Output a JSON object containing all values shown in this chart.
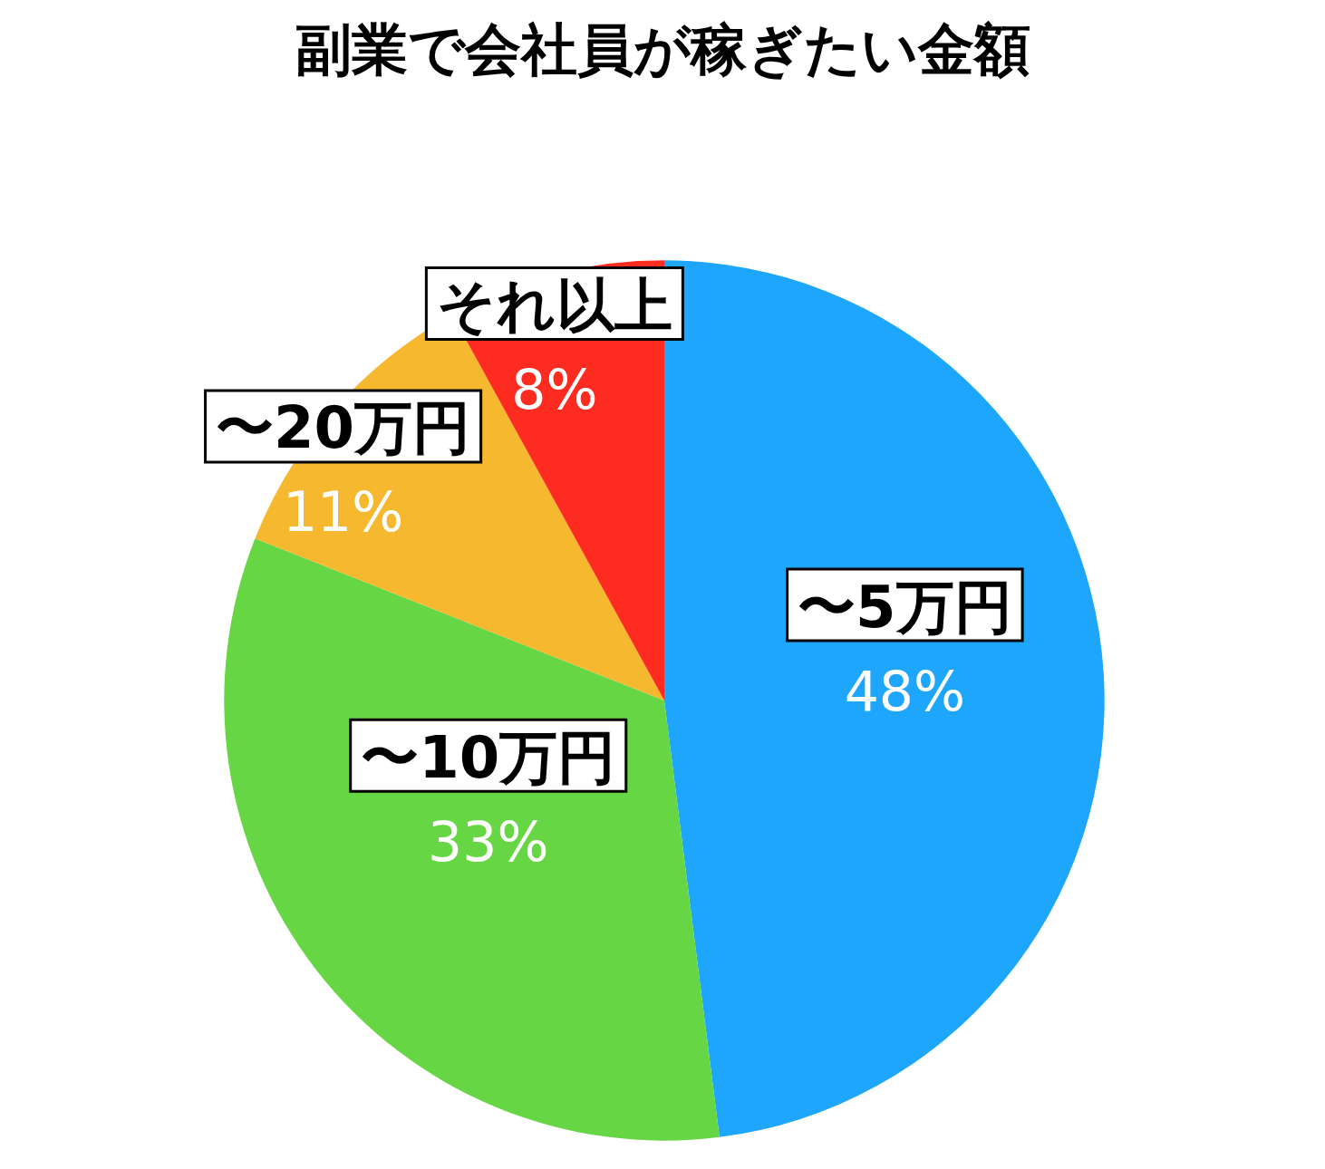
{
  "chart_data": {
    "type": "pie",
    "title": "副業で会社員が稼ぎたい金額",
    "categories": [
      "〜5万円",
      "〜10万円",
      "〜20万円",
      "それ以上"
    ],
    "values": [
      48,
      33,
      11,
      8
    ],
    "colors": [
      "#1ea5fc",
      "#66d645",
      "#f5b82e",
      "#fe2b20"
    ],
    "value_labels": [
      "48%",
      "33%",
      "11%",
      "8%"
    ],
    "legend": false
  }
}
